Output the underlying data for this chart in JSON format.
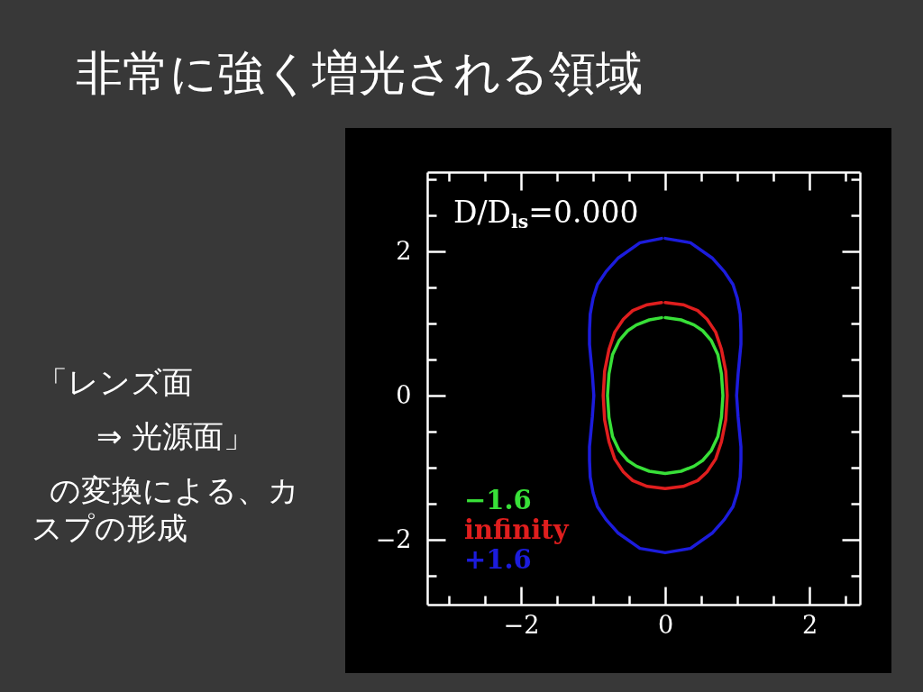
{
  "chart_data": {
    "type": "line",
    "title": "非常に強く増光される領域",
    "annotations": [
      "D/D$_{ls}$=0.000",
      "「レンズ面\n⇒ 光源面」",
      "の変換による、カスプの形成"
    ],
    "xlim": [
      -3.3,
      2.7
    ],
    "ylim": [
      -2.9,
      3.1
    ],
    "xticks": [
      {
        "value": -3,
        "label": null
      },
      {
        "value": -2.5,
        "label": null
      },
      -2,
      {
        "value": -1.5,
        "label": null
      },
      {
        "value": -1,
        "label": null
      },
      {
        "value": -0.5,
        "label": null
      },
      0,
      {
        "value": 0.5,
        "label": null
      },
      {
        "value": 1,
        "label": null
      },
      {
        "value": 1.5,
        "label": null
      },
      2,
      {
        "value": 2.5,
        "label": null
      }
    ],
    "yticks": [
      {
        "value": -2.5,
        "label": null
      },
      -2,
      {
        "value": -1.5,
        "label": null
      },
      {
        "value": -1,
        "label": null
      },
      {
        "value": -0.5,
        "label": null
      },
      0,
      {
        "value": 0.5,
        "label": null
      },
      {
        "value": 1,
        "label": null
      },
      {
        "value": 1.5,
        "label": null
      },
      2,
      {
        "value": 2.5,
        "label": null
      },
      {
        "value": 3,
        "label": null
      }
    ],
    "legend": "bottom left",
    "series": [
      {
        "name": "−1.6",
        "color": "#38e038",
        "x": [
          0,
          0.22,
          0.4,
          0.52,
          0.64,
          0.73,
          0.78,
          0.8,
          0.78,
          0.73,
          0.64,
          0.52,
          0.4,
          0.22,
          0,
          -0.22,
          -0.4,
          -0.52,
          -0.64,
          -0.73,
          -0.78,
          -0.8,
          -0.78,
          -0.73,
          -0.64,
          -0.52,
          -0.4,
          -0.22,
          -0.05
        ],
        "values": [
          1.08,
          1.05,
          0.98,
          0.9,
          0.76,
          0.57,
          0.3,
          0,
          -0.3,
          -0.57,
          -0.76,
          -0.9,
          -0.98,
          -1.05,
          -1.08,
          -1.05,
          -0.98,
          -0.9,
          -0.76,
          -0.57,
          -0.3,
          0,
          0.3,
          0.57,
          0.76,
          0.9,
          0.98,
          1.05,
          1.08
        ]
      },
      {
        "name": "infinity",
        "color": "#e01e1e",
        "x": [
          0,
          0.25,
          0.45,
          0.58,
          0.7,
          0.78,
          0.84,
          0.86,
          0.84,
          0.78,
          0.7,
          0.58,
          0.45,
          0.25,
          0,
          -0.25,
          -0.45,
          -0.58,
          -0.7,
          -0.78,
          -0.84,
          -0.86,
          -0.84,
          -0.78,
          -0.7,
          -0.58,
          -0.45,
          -0.25,
          -0.05
        ],
        "values": [
          1.29,
          1.26,
          1.18,
          1.06,
          0.88,
          0.64,
          0.34,
          0,
          -0.34,
          -0.64,
          -0.88,
          -1.06,
          -1.18,
          -1.26,
          -1.29,
          -1.26,
          -1.18,
          -1.06,
          -0.88,
          -0.64,
          -0.34,
          0,
          0.34,
          0.64,
          0.88,
          1.06,
          1.18,
          1.26,
          1.29
        ]
      },
      {
        "name": "+1.6",
        "color": "#1c1cdc",
        "x": [
          0,
          0.35,
          0.65,
          0.82,
          0.94,
          1.0,
          1.04,
          1.05,
          1.05,
          1.03,
          1.01,
          0.99,
          1.01,
          1.03,
          1.05,
          1.05,
          1.04,
          1.0,
          0.94,
          0.82,
          0.65,
          0.35,
          0,
          -0.35,
          -0.65,
          -0.82,
          -0.94,
          -1.0,
          -1.04,
          -1.05,
          -1.05,
          -1.03,
          -1.01,
          -0.99,
          -1.01,
          -1.03,
          -1.05,
          -1.05,
          -1.04,
          -1.0,
          -0.94,
          -0.82,
          -0.65,
          -0.35,
          -0.05
        ],
        "values": [
          2.18,
          2.12,
          1.91,
          1.72,
          1.54,
          1.35,
          1.13,
          0.9,
          0.71,
          0.5,
          0.29,
          0,
          -0.29,
          -0.5,
          -0.71,
          -0.9,
          -1.13,
          -1.35,
          -1.54,
          -1.72,
          -1.91,
          -2.12,
          -2.18,
          -2.12,
          -1.91,
          -1.72,
          -1.54,
          -1.35,
          -1.13,
          -0.9,
          -0.71,
          -0.5,
          -0.29,
          0,
          0.29,
          0.5,
          0.71,
          0.9,
          1.13,
          1.35,
          1.54,
          1.72,
          1.91,
          2.12,
          2.18
        ]
      }
    ]
  }
}
